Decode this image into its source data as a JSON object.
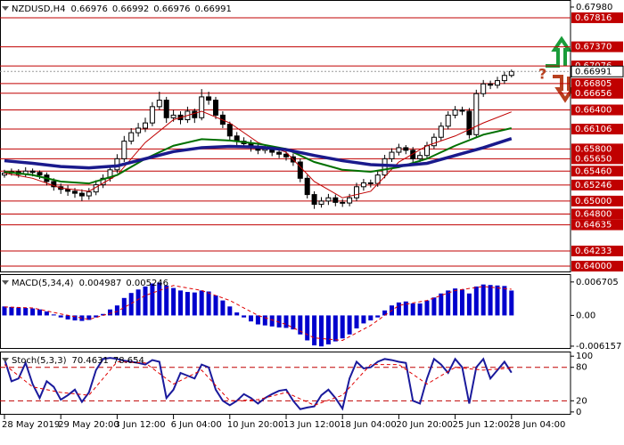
{
  "chart_data": [
    {
      "type": "candlestick",
      "title": "NZDUSD,H4",
      "ohlc": [
        0.66976,
        0.66992,
        0.66976,
        0.66991
      ],
      "annotation": "?",
      "categories": [
        "28 May 2019",
        null,
        null,
        null,
        null,
        null,
        null,
        null,
        "29 May 20:00",
        null,
        null,
        null,
        null,
        null,
        null,
        null,
        "3 Jun 12:00",
        null,
        null,
        null,
        null,
        null,
        null,
        null,
        "6 Jun 04:00",
        null,
        null,
        null,
        null,
        null,
        null,
        null,
        "10 Jun 20:00",
        null,
        null,
        null,
        null,
        null,
        null,
        null,
        "13 Jun 12:00",
        null,
        null,
        null,
        null,
        null,
        null,
        null,
        "18 Jun 04:00",
        null,
        null,
        null,
        null,
        null,
        null,
        null,
        "20 Jun 20:00",
        null,
        null,
        null,
        null,
        null,
        null,
        null,
        "25 Jun 12:00",
        null,
        null,
        null,
        null,
        null,
        null,
        null,
        "28 Jun 04:00"
      ],
      "candles": [
        [
          0.654,
          0.6548,
          0.6536,
          0.6543
        ],
        [
          0.6543,
          0.655,
          0.6539,
          0.6545
        ],
        [
          0.6545,
          0.6549,
          0.6536,
          0.6541
        ],
        [
          0.6541,
          0.6552,
          0.6537,
          0.6546
        ],
        [
          0.6546,
          0.655,
          0.6538,
          0.6544
        ],
        [
          0.6544,
          0.6547,
          0.6534,
          0.654
        ],
        [
          0.654,
          0.6544,
          0.6524,
          0.653
        ],
        [
          0.653,
          0.6535,
          0.6516,
          0.6522
        ],
        [
          0.6522,
          0.6527,
          0.6511,
          0.6518
        ],
        [
          0.6518,
          0.6524,
          0.6508,
          0.6515
        ],
        [
          0.6515,
          0.652,
          0.6505,
          0.6512
        ],
        [
          0.6512,
          0.6518,
          0.65,
          0.6508
        ],
        [
          0.6508,
          0.652,
          0.6502,
          0.6514
        ],
        [
          0.6514,
          0.6532,
          0.6509,
          0.6525
        ],
        [
          0.6525,
          0.6541,
          0.652,
          0.6535
        ],
        [
          0.6535,
          0.6555,
          0.653,
          0.6548
        ],
        [
          0.6548,
          0.6572,
          0.6543,
          0.6565
        ],
        [
          0.6565,
          0.66,
          0.656,
          0.6592
        ],
        [
          0.6592,
          0.6612,
          0.6587,
          0.6605
        ],
        [
          0.6605,
          0.662,
          0.6599,
          0.6612
        ],
        [
          0.6612,
          0.6628,
          0.6606,
          0.662
        ],
        [
          0.662,
          0.6652,
          0.6615,
          0.6645
        ],
        [
          0.6645,
          0.6668,
          0.664,
          0.6655
        ],
        [
          0.6655,
          0.666,
          0.662,
          0.6628
        ],
        [
          0.6628,
          0.664,
          0.6622,
          0.6632
        ],
        [
          0.6632,
          0.6638,
          0.6618,
          0.6625
        ],
        [
          0.6625,
          0.6645,
          0.662,
          0.6638
        ],
        [
          0.6638,
          0.6642,
          0.662,
          0.6628
        ],
        [
          0.6628,
          0.6672,
          0.6624,
          0.666
        ],
        [
          0.666,
          0.6668,
          0.6648,
          0.6655
        ],
        [
          0.6655,
          0.666,
          0.6626,
          0.6632
        ],
        [
          0.6632,
          0.6638,
          0.6612,
          0.6618
        ],
        [
          0.6618,
          0.6622,
          0.6594,
          0.66
        ],
        [
          0.66,
          0.6606,
          0.6586,
          0.6592
        ],
        [
          0.6592,
          0.6598,
          0.6582,
          0.6588
        ],
        [
          0.6588,
          0.6594,
          0.6576,
          0.6582
        ],
        [
          0.6582,
          0.6588,
          0.6572,
          0.6578
        ],
        [
          0.6578,
          0.6586,
          0.6573,
          0.658
        ],
        [
          0.658,
          0.6585,
          0.6569,
          0.6575
        ],
        [
          0.6575,
          0.6581,
          0.6566,
          0.6572
        ],
        [
          0.6572,
          0.6578,
          0.6562,
          0.6568
        ],
        [
          0.6568,
          0.6573,
          0.6554,
          0.656
        ],
        [
          0.656,
          0.6565,
          0.6529,
          0.6535
        ],
        [
          0.6535,
          0.654,
          0.6504,
          0.651
        ],
        [
          0.651,
          0.6515,
          0.6488,
          0.6495
        ],
        [
          0.6495,
          0.6506,
          0.649,
          0.65
        ],
        [
          0.65,
          0.6511,
          0.6494,
          0.6505
        ],
        [
          0.6505,
          0.651,
          0.6492,
          0.6498
        ],
        [
          0.6498,
          0.6503,
          0.6491,
          0.6497
        ],
        [
          0.6497,
          0.6511,
          0.6492,
          0.6505
        ],
        [
          0.6505,
          0.6528,
          0.65,
          0.6522
        ],
        [
          0.6522,
          0.6534,
          0.6516,
          0.6528
        ],
        [
          0.6528,
          0.6533,
          0.6521,
          0.6527
        ],
        [
          0.6527,
          0.6546,
          0.6522,
          0.654
        ],
        [
          0.654,
          0.6571,
          0.6535,
          0.6565
        ],
        [
          0.6565,
          0.6581,
          0.656,
          0.6575
        ],
        [
          0.6575,
          0.6588,
          0.657,
          0.6582
        ],
        [
          0.6582,
          0.6586,
          0.6572,
          0.6578
        ],
        [
          0.6578,
          0.6583,
          0.6559,
          0.6565
        ],
        [
          0.6565,
          0.6576,
          0.656,
          0.657
        ],
        [
          0.657,
          0.6591,
          0.6565,
          0.6585
        ],
        [
          0.6585,
          0.6604,
          0.658,
          0.6598
        ],
        [
          0.6598,
          0.6621,
          0.6593,
          0.6615
        ],
        [
          0.6615,
          0.6638,
          0.661,
          0.6632
        ],
        [
          0.6632,
          0.6646,
          0.6627,
          0.664
        ],
        [
          0.664,
          0.6645,
          0.6632,
          0.6638
        ],
        [
          0.6638,
          0.6643,
          0.6596,
          0.6602
        ],
        [
          0.6602,
          0.6671,
          0.6598,
          0.6665
        ],
        [
          0.6665,
          0.6686,
          0.666,
          0.668
        ],
        [
          0.668,
          0.6685,
          0.6672,
          0.6678
        ],
        [
          0.6678,
          0.6691,
          0.6673,
          0.6685
        ],
        [
          0.6685,
          0.6699,
          0.668,
          0.6693
        ],
        [
          0.6693,
          0.6702,
          0.669,
          0.6699
        ]
      ],
      "series": [
        {
          "color": "#c00000",
          "width": 1,
          "x": [
            0,
            4,
            8,
            12,
            16,
            20,
            24,
            28,
            32,
            36,
            40,
            44,
            48,
            52,
            56,
            60,
            64,
            68,
            72
          ],
          "values": [
            0.6543,
            0.6535,
            0.652,
            0.6515,
            0.654,
            0.659,
            0.6625,
            0.6638,
            0.662,
            0.659,
            0.6575,
            0.653,
            0.6505,
            0.6515,
            0.656,
            0.6585,
            0.66,
            0.662,
            0.6637
          ]
        },
        {
          "color": "#007000",
          "width": 2,
          "x": [
            0,
            4,
            8,
            12,
            16,
            20,
            24,
            28,
            32,
            36,
            40,
            44,
            48,
            52,
            56,
            60,
            64,
            68,
            72
          ],
          "values": [
            0.6545,
            0.654,
            0.653,
            0.6527,
            0.654,
            0.6565,
            0.6585,
            0.6595,
            0.6593,
            0.6588,
            0.658,
            0.656,
            0.6548,
            0.6545,
            0.6552,
            0.6565,
            0.6585,
            0.6602,
            0.6612
          ]
        },
        {
          "color": "#1a1a8c",
          "width": 3.5,
          "x": [
            0,
            4,
            8,
            12,
            16,
            20,
            24,
            28,
            32,
            36,
            40,
            44,
            48,
            52,
            56,
            60,
            64,
            68,
            72
          ],
          "values": [
            0.6562,
            0.6558,
            0.6553,
            0.6551,
            0.6554,
            0.6565,
            0.6576,
            0.6582,
            0.6584,
            0.6583,
            0.6579,
            0.657,
            0.6562,
            0.6556,
            0.6554,
            0.6558,
            0.657,
            0.6582,
            0.6596
          ]
        }
      ],
      "ylim": [
        0.63905,
        0.68075
      ],
      "yticks": [
        {
          "value": 0.6798,
          "label": "0.67980"
        }
      ],
      "levels": [
        {
          "value": 0.67816,
          "label": "0.67816"
        },
        {
          "value": 0.6737,
          "label": "0.67370"
        },
        {
          "value": 0.67076,
          "label": "0.67076"
        },
        {
          "value": 0.66805,
          "label": "0.66805"
        },
        {
          "value": 0.66656,
          "label": "0.66656"
        },
        {
          "value": 0.664,
          "label": "0.66400"
        },
        {
          "value": 0.66106,
          "label": "0.66106"
        },
        {
          "value": 0.658,
          "label": "0.65800"
        },
        {
          "value": 0.6565,
          "label": "0.65650"
        },
        {
          "value": 0.6546,
          "label": "0.65460"
        },
        {
          "value": 0.65246,
          "label": "0.65246"
        },
        {
          "value": 0.65,
          "label": "0.65000"
        },
        {
          "value": 0.648,
          "label": "0.64800"
        },
        {
          "value": 0.64635,
          "label": "0.64635"
        },
        {
          "value": 0.64233,
          "label": "0.64233"
        },
        {
          "value": 0.64,
          "label": "0.64000"
        }
      ],
      "level_color": "#c00000",
      "last_price": 0.66991
    },
    {
      "type": "histogram",
      "title": "MACD(5,34,4)",
      "readings": [
        0.004987,
        0.005246
      ],
      "color": "#0000cd",
      "values": [
        0.0018,
        0.0017,
        0.0016,
        0.0015,
        0.0014,
        0.0012,
        0.0008,
        0.0002,
        -0.0004,
        -0.0008,
        -0.001,
        -0.0011,
        -0.0009,
        -0.0004,
        0.0003,
        0.0012,
        0.002,
        0.0035,
        0.0045,
        0.0052,
        0.0058,
        0.0064,
        0.0066,
        0.006,
        0.0055,
        0.005,
        0.0047,
        0.0046,
        0.005,
        0.0048,
        0.004,
        0.003,
        0.0018,
        0.0006,
        -0.0004,
        -0.0012,
        -0.0018,
        -0.002,
        -0.0022,
        -0.0024,
        -0.0025,
        -0.0028,
        -0.0038,
        -0.005,
        -0.006,
        -0.0062,
        -0.0058,
        -0.0052,
        -0.0046,
        -0.0038,
        -0.0026,
        -0.0016,
        -0.001,
        -0.0004,
        0.001,
        0.002,
        0.0026,
        0.0028,
        0.0024,
        0.0024,
        0.003,
        0.0036,
        0.0044,
        0.005,
        0.0054,
        0.0052,
        0.0044,
        0.0058,
        0.0062,
        0.0061,
        0.006,
        0.0059,
        0.004987
      ],
      "signal": {
        "color": "#e00000",
        "x": [
          0,
          4,
          8,
          12,
          16,
          20,
          24,
          28,
          32,
          36,
          40,
          44,
          48,
          52,
          56,
          60,
          64,
          68,
          72
        ],
        "values": [
          0.0017,
          0.0015,
          0.0003,
          -0.0008,
          0.0008,
          0.004,
          0.006,
          0.005,
          0.003,
          0,
          -0.0018,
          -0.0045,
          -0.005,
          -0.002,
          0.002,
          0.003,
          0.005,
          0.0058,
          0.005246
        ]
      },
      "ylim": [
        -0.0067,
        0.0081
      ],
      "yticks": [
        0.006705,
        {
          "value": 0,
          "label": "0.00"
        },
        -0.006157
      ]
    },
    {
      "type": "line",
      "title": "Stoch(5,3,3)",
      "readings": [
        70.4631,
        78.654
      ],
      "series": [
        {
          "color": "#1a1a9c",
          "width": 2,
          "values": [
            95,
            55,
            60,
            88,
            50,
            25,
            55,
            45,
            22,
            30,
            40,
            18,
            35,
            75,
            95,
            97,
            95,
            92,
            90,
            88,
            85,
            93,
            90,
            25,
            40,
            70,
            65,
            60,
            85,
            80,
            40,
            20,
            12,
            20,
            32,
            25,
            15,
            25,
            32,
            38,
            40,
            20,
            5,
            8,
            10,
            30,
            40,
            25,
            6,
            60,
            90,
            78,
            80,
            90,
            95,
            93,
            90,
            88,
            20,
            15,
            60,
            95,
            85,
            70,
            95,
            80,
            15,
            80,
            95,
            60,
            75,
            90,
            70.4631
          ]
        },
        {
          "color": "#e00000",
          "width": 1,
          "dashed": true,
          "x": [
            0,
            4,
            8,
            12,
            16,
            20,
            24,
            28,
            32,
            36,
            40,
            44,
            48,
            52,
            56,
            60,
            64,
            68,
            72
          ],
          "values": [
            85,
            45,
            35,
            30,
            90,
            88,
            50,
            75,
            20,
            22,
            35,
            12,
            30,
            85,
            85,
            50,
            80,
            75,
            78.654
          ]
        }
      ],
      "ylim": [
        -5,
        106.7
      ],
      "yticks": [
        100,
        80,
        20,
        0
      ],
      "levels": [
        80,
        20
      ],
      "level_color": "#c00000"
    }
  ]
}
